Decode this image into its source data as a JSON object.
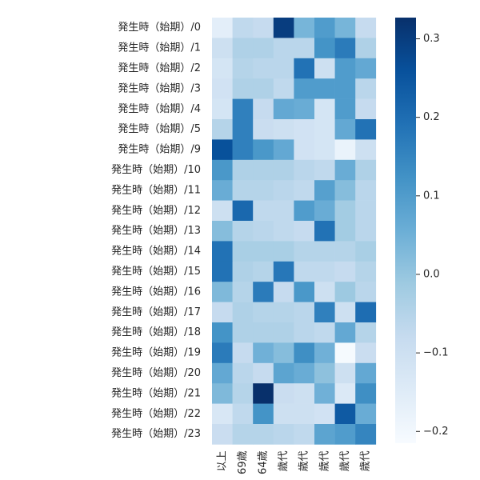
{
  "chart_data": {
    "type": "heatmap",
    "title": "",
    "xlabel": "",
    "ylabel": "",
    "rows": [
      "発生時（始期）/0",
      "発生時（始期）/1",
      "発生時（始期）/2",
      "発生時（始期）/3",
      "発生時（始期）/4",
      "発生時（始期）/5",
      "発生時（始期）/9",
      "発生時（始期）/10",
      "発生時（始期）/11",
      "発生時（始期）/12",
      "発生時（始期）/13",
      "発生時（始期）/14",
      "発生時（始期）/15",
      "発生時（始期）/16",
      "発生時（始期）/17",
      "発生時（始期）/18",
      "発生時（始期）/19",
      "発生時（始期）/20",
      "発生時（始期）/21",
      "発生時（始期）/22",
      "発生時（始期）/23"
    ],
    "columns": [
      "以上",
      "69歳",
      "64歳",
      "歳代",
      "歳代",
      "歳代",
      "歳代",
      "歳代"
    ],
    "values": [
      [
        -0.16,
        -0.07,
        -0.08,
        0.3,
        0.04,
        0.1,
        0.04,
        -0.08
      ],
      [
        -0.1,
        -0.04,
        -0.04,
        -0.06,
        -0.06,
        0.12,
        0.17,
        -0.04
      ],
      [
        -0.12,
        -0.05,
        -0.06,
        -0.06,
        0.19,
        -0.1,
        0.1,
        0.07
      ],
      [
        -0.11,
        -0.04,
        -0.04,
        -0.07,
        0.1,
        0.1,
        0.1,
        -0.06
      ],
      [
        -0.12,
        0.16,
        -0.08,
        0.07,
        0.06,
        -0.12,
        0.1,
        -0.08
      ],
      [
        -0.05,
        0.16,
        -0.09,
        -0.1,
        -0.11,
        -0.12,
        0.07,
        0.19
      ],
      [
        0.26,
        0.16,
        0.11,
        0.07,
        -0.11,
        -0.12,
        -0.18,
        -0.1
      ],
      [
        0.11,
        -0.04,
        -0.04,
        -0.04,
        -0.06,
        -0.07,
        0.06,
        -0.04
      ],
      [
        0.06,
        -0.05,
        -0.05,
        -0.06,
        -0.07,
        0.09,
        0.02,
        -0.06
      ],
      [
        -0.1,
        0.21,
        -0.07,
        -0.07,
        0.1,
        0.06,
        -0.02,
        -0.06
      ],
      [
        0.02,
        -0.05,
        -0.06,
        -0.07,
        -0.08,
        0.19,
        -0.02,
        -0.06
      ],
      [
        0.19,
        -0.03,
        -0.03,
        -0.03,
        -0.05,
        -0.05,
        -0.05,
        -0.03
      ],
      [
        0.19,
        -0.04,
        -0.05,
        0.18,
        -0.07,
        -0.07,
        -0.08,
        -0.05
      ],
      [
        0.03,
        -0.05,
        0.17,
        -0.08,
        0.11,
        -0.1,
        -0.01,
        -0.06
      ],
      [
        -0.08,
        -0.04,
        -0.05,
        -0.05,
        -0.06,
        0.16,
        -0.1,
        0.2
      ],
      [
        0.12,
        -0.04,
        -0.04,
        -0.04,
        -0.06,
        -0.07,
        0.07,
        -0.05
      ],
      [
        0.17,
        -0.08,
        0.05,
        0.02,
        0.13,
        0.05,
        -0.21,
        -0.09
      ],
      [
        0.07,
        -0.06,
        -0.08,
        0.08,
        0.06,
        0.01,
        -0.1,
        0.07
      ],
      [
        0.03,
        -0.05,
        0.33,
        -0.09,
        -0.1,
        0.05,
        -0.14,
        0.13
      ],
      [
        -0.13,
        -0.07,
        0.12,
        -0.1,
        -0.1,
        -0.11,
        0.24,
        0.06
      ],
      [
        -0.09,
        -0.05,
        -0.05,
        -0.06,
        -0.07,
        0.08,
        0.1,
        0.15
      ]
    ],
    "colorbar": {
      "min": -0.215,
      "max": 0.327,
      "ticks": [
        0.3,
        0.2,
        0.1,
        0.0,
        -0.1,
        -0.2
      ],
      "tick_labels": [
        "0.3",
        "0.2",
        "0.1",
        "0.0",
        "−0.1",
        "−0.2"
      ]
    },
    "colormap": "Blues"
  }
}
